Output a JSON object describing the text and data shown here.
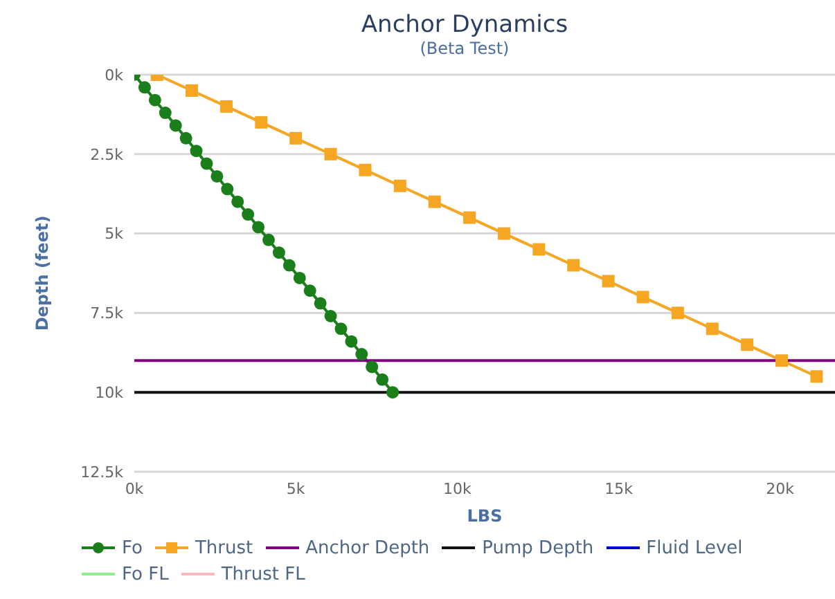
{
  "chart_data": {
    "type": "line",
    "title": "Anchor Dynamics",
    "subtitle": "(Beta Test)",
    "xlabel": "LBS",
    "ylabel": "Depth (feet)",
    "xlim": [
      0,
      21700
    ],
    "xticks": [
      {
        "value": 0,
        "label": "0k"
      },
      {
        "value": 5000,
        "label": "5k"
      },
      {
        "value": 10000,
        "label": "10k"
      },
      {
        "value": 15000,
        "label": "15k"
      },
      {
        "value": 20000,
        "label": "20k"
      }
    ],
    "ylim": [
      12500,
      0
    ],
    "yticks": [
      {
        "value": 0,
        "label": "0k"
      },
      {
        "value": 2500,
        "label": "2.5k"
      },
      {
        "value": 5000,
        "label": "5k"
      },
      {
        "value": 7500,
        "label": "7.5k"
      },
      {
        "value": 10000,
        "label": "10k"
      },
      {
        "value": 12500,
        "label": "12.5k"
      }
    ],
    "grid": "y",
    "legend": "bottom",
    "series": [
      {
        "name": "Fo",
        "color": "#1a7f1a",
        "marker": "circle",
        "x": [
          0,
          320,
          640,
          960,
          1280,
          1600,
          1920,
          2240,
          2560,
          2880,
          3200,
          3520,
          3840,
          4160,
          4480,
          4800,
          5120,
          5440,
          5760,
          6080,
          6400,
          6720,
          7040,
          7360,
          7680,
          8000
        ],
        "values": [
          0,
          400,
          800,
          1200,
          1600,
          2000,
          2400,
          2800,
          3200,
          3600,
          4000,
          4400,
          4800,
          5200,
          5600,
          6000,
          6400,
          6800,
          7200,
          7600,
          8000,
          8400,
          8800,
          9200,
          9600,
          10000
        ]
      },
      {
        "name": "Thrust",
        "color": "#f5a623",
        "marker": "square",
        "x": [
          700,
          1780,
          2850,
          3930,
          5000,
          6080,
          7150,
          8230,
          9300,
          10380,
          11450,
          12530,
          13600,
          14680,
          15750,
          16830,
          17900,
          18980,
          20050,
          21130
        ],
        "values": [
          0,
          500,
          1000,
          1500,
          2000,
          2500,
          3000,
          3500,
          4000,
          4500,
          5000,
          5500,
          6000,
          6500,
          7000,
          7500,
          8000,
          8500,
          9000,
          9500
        ]
      },
      {
        "name": "Anchor Depth",
        "color": "#800080",
        "marker": "none",
        "x": [
          0,
          21700
        ],
        "values": [
          9000,
          9000
        ]
      },
      {
        "name": "Pump Depth",
        "color": "#111111",
        "marker": "none",
        "x": [
          0,
          21700
        ],
        "values": [
          10000,
          10000
        ]
      },
      {
        "name": "Fluid Level",
        "color": "#0000cc",
        "marker": "none"
      },
      {
        "name": "Fo FL",
        "color": "#90ee90",
        "marker": "none"
      },
      {
        "name": "Thrust FL",
        "color": "#ffb6c1",
        "marker": "none"
      }
    ]
  }
}
